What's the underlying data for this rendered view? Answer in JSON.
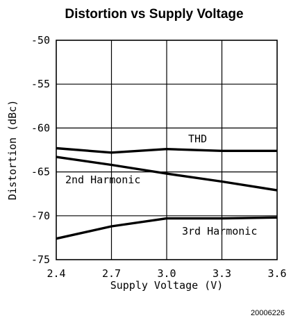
{
  "chart_data": {
    "type": "line",
    "title": "Distortion vs Supply Voltage",
    "xlabel": "Supply Voltage (V)",
    "ylabel": "Distortion (dBc)",
    "xlim": [
      2.4,
      3.6
    ],
    "ylim": [
      -75,
      -50
    ],
    "x_ticks": [
      "2.4",
      "2.7",
      "3.0",
      "3.3",
      "3.6"
    ],
    "y_ticks": [
      "-50",
      "-55",
      "-60",
      "-65",
      "-70",
      "-75"
    ],
    "grid": true,
    "series": [
      {
        "name": "THD",
        "x": [
          2.4,
          2.7,
          3.0,
          3.3,
          3.6
        ],
        "values": [
          -62.3,
          -62.8,
          -62.4,
          -62.6,
          -62.6
        ]
      },
      {
        "name": "2nd Harmonic",
        "x": [
          2.4,
          2.7,
          3.0,
          3.3,
          3.6
        ],
        "values": [
          -63.3,
          -64.2,
          -65.2,
          -66.1,
          -67.1
        ]
      },
      {
        "name": "3rd Harmonic",
        "x": [
          2.4,
          2.7,
          3.0,
          3.3,
          3.6
        ],
        "values": [
          -72.6,
          -71.2,
          -70.3,
          -70.3,
          -70.2
        ]
      }
    ],
    "annotations": [
      "THD",
      "2nd Harmonic",
      "3rd Harmonic"
    ],
    "figure_id": "20006226"
  }
}
